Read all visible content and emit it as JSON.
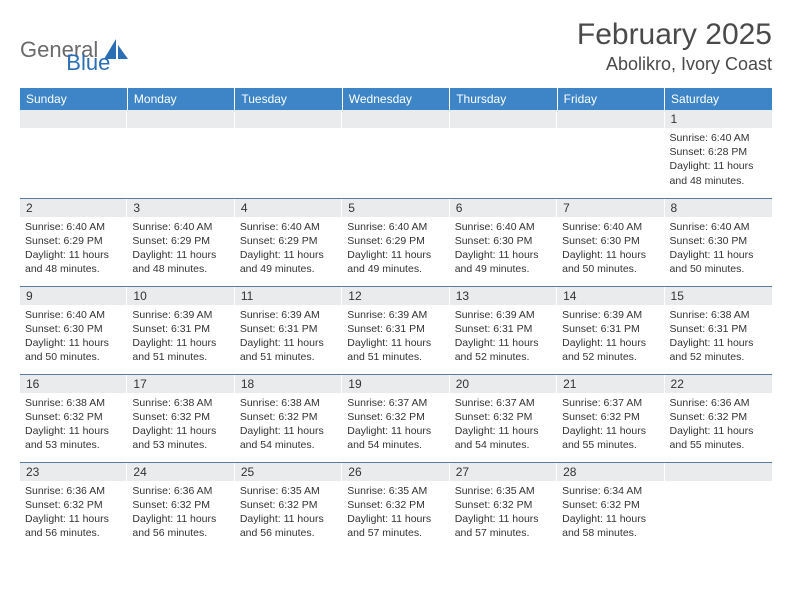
{
  "brand": {
    "part1": "General",
    "part2": "Blue"
  },
  "title": "February 2025",
  "location": "Abolikro, Ivory Coast",
  "colors": {
    "header_bg": "#3d85c6",
    "header_text": "#ffffff",
    "daynum_bg": "#e9ebed",
    "rule": "#5a7da3",
    "body_text": "#333333",
    "brand_gray": "#6b6b6b",
    "brand_blue": "#2a6fb5"
  },
  "day_names": [
    "Sunday",
    "Monday",
    "Tuesday",
    "Wednesday",
    "Thursday",
    "Friday",
    "Saturday"
  ],
  "weeks": [
    [
      {
        "n": "",
        "sr": "",
        "ss": "",
        "dl": ""
      },
      {
        "n": "",
        "sr": "",
        "ss": "",
        "dl": ""
      },
      {
        "n": "",
        "sr": "",
        "ss": "",
        "dl": ""
      },
      {
        "n": "",
        "sr": "",
        "ss": "",
        "dl": ""
      },
      {
        "n": "",
        "sr": "",
        "ss": "",
        "dl": ""
      },
      {
        "n": "",
        "sr": "",
        "ss": "",
        "dl": ""
      },
      {
        "n": "1",
        "sr": "Sunrise: 6:40 AM",
        "ss": "Sunset: 6:28 PM",
        "dl": "Daylight: 11 hours and 48 minutes."
      }
    ],
    [
      {
        "n": "2",
        "sr": "Sunrise: 6:40 AM",
        "ss": "Sunset: 6:29 PM",
        "dl": "Daylight: 11 hours and 48 minutes."
      },
      {
        "n": "3",
        "sr": "Sunrise: 6:40 AM",
        "ss": "Sunset: 6:29 PM",
        "dl": "Daylight: 11 hours and 48 minutes."
      },
      {
        "n": "4",
        "sr": "Sunrise: 6:40 AM",
        "ss": "Sunset: 6:29 PM",
        "dl": "Daylight: 11 hours and 49 minutes."
      },
      {
        "n": "5",
        "sr": "Sunrise: 6:40 AM",
        "ss": "Sunset: 6:29 PM",
        "dl": "Daylight: 11 hours and 49 minutes."
      },
      {
        "n": "6",
        "sr": "Sunrise: 6:40 AM",
        "ss": "Sunset: 6:30 PM",
        "dl": "Daylight: 11 hours and 49 minutes."
      },
      {
        "n": "7",
        "sr": "Sunrise: 6:40 AM",
        "ss": "Sunset: 6:30 PM",
        "dl": "Daylight: 11 hours and 50 minutes."
      },
      {
        "n": "8",
        "sr": "Sunrise: 6:40 AM",
        "ss": "Sunset: 6:30 PM",
        "dl": "Daylight: 11 hours and 50 minutes."
      }
    ],
    [
      {
        "n": "9",
        "sr": "Sunrise: 6:40 AM",
        "ss": "Sunset: 6:30 PM",
        "dl": "Daylight: 11 hours and 50 minutes."
      },
      {
        "n": "10",
        "sr": "Sunrise: 6:39 AM",
        "ss": "Sunset: 6:31 PM",
        "dl": "Daylight: 11 hours and 51 minutes."
      },
      {
        "n": "11",
        "sr": "Sunrise: 6:39 AM",
        "ss": "Sunset: 6:31 PM",
        "dl": "Daylight: 11 hours and 51 minutes."
      },
      {
        "n": "12",
        "sr": "Sunrise: 6:39 AM",
        "ss": "Sunset: 6:31 PM",
        "dl": "Daylight: 11 hours and 51 minutes."
      },
      {
        "n": "13",
        "sr": "Sunrise: 6:39 AM",
        "ss": "Sunset: 6:31 PM",
        "dl": "Daylight: 11 hours and 52 minutes."
      },
      {
        "n": "14",
        "sr": "Sunrise: 6:39 AM",
        "ss": "Sunset: 6:31 PM",
        "dl": "Daylight: 11 hours and 52 minutes."
      },
      {
        "n": "15",
        "sr": "Sunrise: 6:38 AM",
        "ss": "Sunset: 6:31 PM",
        "dl": "Daylight: 11 hours and 52 minutes."
      }
    ],
    [
      {
        "n": "16",
        "sr": "Sunrise: 6:38 AM",
        "ss": "Sunset: 6:32 PM",
        "dl": "Daylight: 11 hours and 53 minutes."
      },
      {
        "n": "17",
        "sr": "Sunrise: 6:38 AM",
        "ss": "Sunset: 6:32 PM",
        "dl": "Daylight: 11 hours and 53 minutes."
      },
      {
        "n": "18",
        "sr": "Sunrise: 6:38 AM",
        "ss": "Sunset: 6:32 PM",
        "dl": "Daylight: 11 hours and 54 minutes."
      },
      {
        "n": "19",
        "sr": "Sunrise: 6:37 AM",
        "ss": "Sunset: 6:32 PM",
        "dl": "Daylight: 11 hours and 54 minutes."
      },
      {
        "n": "20",
        "sr": "Sunrise: 6:37 AM",
        "ss": "Sunset: 6:32 PM",
        "dl": "Daylight: 11 hours and 54 minutes."
      },
      {
        "n": "21",
        "sr": "Sunrise: 6:37 AM",
        "ss": "Sunset: 6:32 PM",
        "dl": "Daylight: 11 hours and 55 minutes."
      },
      {
        "n": "22",
        "sr": "Sunrise: 6:36 AM",
        "ss": "Sunset: 6:32 PM",
        "dl": "Daylight: 11 hours and 55 minutes."
      }
    ],
    [
      {
        "n": "23",
        "sr": "Sunrise: 6:36 AM",
        "ss": "Sunset: 6:32 PM",
        "dl": "Daylight: 11 hours and 56 minutes."
      },
      {
        "n": "24",
        "sr": "Sunrise: 6:36 AM",
        "ss": "Sunset: 6:32 PM",
        "dl": "Daylight: 11 hours and 56 minutes."
      },
      {
        "n": "25",
        "sr": "Sunrise: 6:35 AM",
        "ss": "Sunset: 6:32 PM",
        "dl": "Daylight: 11 hours and 56 minutes."
      },
      {
        "n": "26",
        "sr": "Sunrise: 6:35 AM",
        "ss": "Sunset: 6:32 PM",
        "dl": "Daylight: 11 hours and 57 minutes."
      },
      {
        "n": "27",
        "sr": "Sunrise: 6:35 AM",
        "ss": "Sunset: 6:32 PM",
        "dl": "Daylight: 11 hours and 57 minutes."
      },
      {
        "n": "28",
        "sr": "Sunrise: 6:34 AM",
        "ss": "Sunset: 6:32 PM",
        "dl": "Daylight: 11 hours and 58 minutes."
      },
      {
        "n": "",
        "sr": "",
        "ss": "",
        "dl": ""
      }
    ]
  ]
}
